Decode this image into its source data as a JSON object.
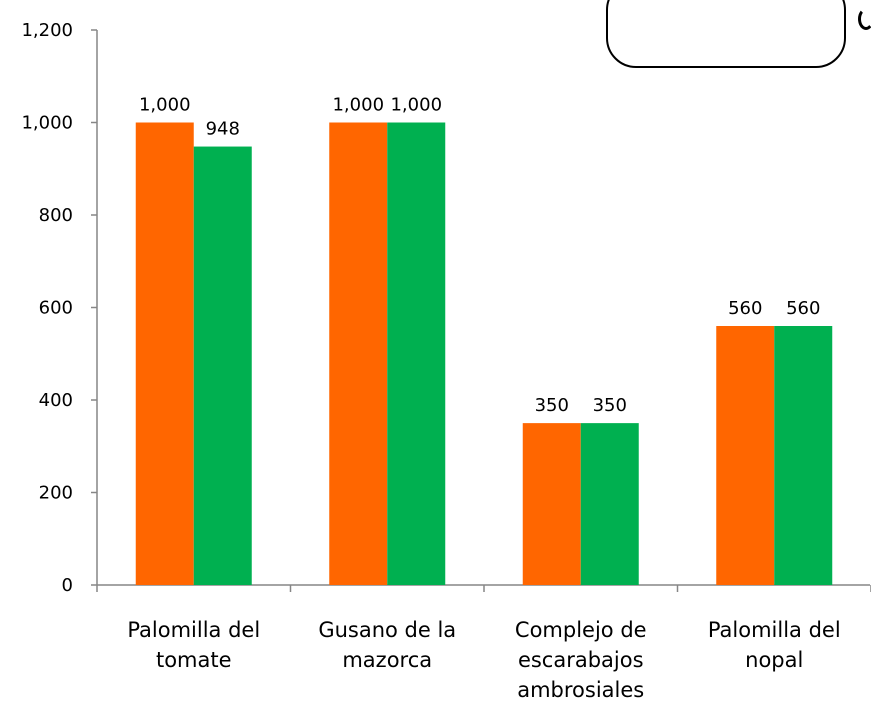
{
  "chart_data": {
    "type": "bar",
    "categories": [
      [
        "Palomilla del",
        "tomate"
      ],
      [
        "Gusano de la",
        "mazorca"
      ],
      [
        "Complejo de",
        "escarabajos",
        "ambrosiales"
      ],
      [
        "Palomilla del",
        "nopal"
      ]
    ],
    "series": [
      {
        "color": "#FF6600",
        "values": [
          1000,
          1000,
          350,
          560
        ],
        "labels": [
          "1,000",
          "1,000",
          "350",
          "560"
        ]
      },
      {
        "color": "#00B050",
        "values": [
          948,
          1000,
          350,
          560
        ],
        "labels": [
          "948",
          "1,000",
          "350",
          "560"
        ]
      }
    ],
    "yticks": [
      "0",
      "200",
      "400",
      "600",
      "800",
      "1,000",
      "1,200"
    ],
    "ylim": [
      0,
      1200
    ],
    "grid": false,
    "legend": "top-right"
  }
}
